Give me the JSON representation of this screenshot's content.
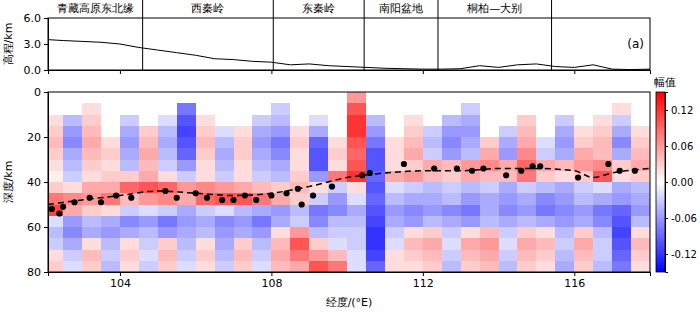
{
  "chart_data": [
    {
      "type": "line",
      "label": "(a)",
      "ylabel": "高程/km",
      "color": "#000000",
      "x": [
        102.1,
        102.5,
        103,
        103.5,
        104,
        104.5,
        105,
        105.5,
        106,
        106.5,
        107,
        107.5,
        108,
        108.5,
        109,
        109.5,
        110,
        110.5,
        111,
        111.5,
        112,
        112.5,
        113,
        113.5,
        114,
        114.5,
        115,
        115.5,
        116,
        116.5,
        117,
        117.5,
        118
      ],
      "values": [
        3.5,
        3.4,
        3.3,
        3.2,
        3.0,
        2.6,
        2.3,
        2.0,
        1.7,
        1.3,
        1.2,
        1.0,
        0.9,
        0.6,
        0.7,
        0.5,
        0.4,
        0.3,
        0.2,
        0.15,
        0.1,
        0.1,
        0.15,
        0.5,
        0.3,
        0.6,
        0.7,
        0.4,
        0.3,
        0.6,
        0.1,
        0.05,
        0.1
      ],
      "xlim": [
        102.1,
        118.0
      ],
      "ylim": [
        0,
        6
      ],
      "xticks": [
        104,
        108,
        112,
        116
      ],
      "yticks": [
        {
          "value": 0,
          "label": "0.0"
        },
        {
          "value": 3,
          "label": "3.0"
        },
        {
          "value": 6,
          "label": "6.0"
        }
      ],
      "tick_labels": "y",
      "regions": [
        {
          "label": "青藏高原东北缘",
          "from": 102.1,
          "to": 104.6
        },
        {
          "label": "西秦岭",
          "from": 104.6,
          "to": 108.05
        },
        {
          "label": "东秦岭",
          "from": 108.05,
          "to": 110.45
        },
        {
          "label": "南阳盆地",
          "from": 110.45,
          "to": 112.4
        },
        {
          "label": "桐柏—大别",
          "from": 112.4,
          "to": 115.4
        }
      ]
    },
    {
      "type": "heatmap",
      "xlabel": "经度/(°E)",
      "ylabel": "深度/km",
      "xlim": [
        102.1,
        118.0
      ],
      "ylim": [
        80,
        0
      ],
      "xticks": [
        104,
        108,
        112,
        116
      ],
      "yticks": [
        0,
        20,
        40,
        60,
        80
      ],
      "color_label": "幅值",
      "color_range": [
        -0.15,
        0.15
      ],
      "color_ticks": [
        0.12,
        0.06,
        {
          "value": 0,
          "label": "0.00"
        },
        -0.06,
        -0.12
      ],
      "x_edges": [
        102,
        102.5,
        103,
        103.5,
        104,
        104.5,
        105,
        105.5,
        106,
        106.5,
        107,
        107.5,
        108,
        108.5,
        109,
        109.5,
        110,
        110.5,
        111,
        111.5,
        112,
        112.5,
        113,
        113.5,
        114,
        114.5,
        115,
        115.5,
        116,
        116.5,
        117,
        117.5,
        118
      ],
      "y_edges": [
        0,
        5,
        10,
        15,
        20,
        25,
        30,
        35,
        40,
        45,
        50,
        55,
        60,
        65,
        70,
        75,
        80
      ],
      "cells": [
        [
          0,
          0,
          0,
          0,
          0,
          0,
          0,
          0,
          0,
          0,
          0,
          0,
          0,
          0,
          0,
          0,
          0.06,
          0,
          0,
          0,
          0,
          0,
          0,
          0,
          0,
          0,
          0,
          0,
          0,
          0,
          0,
          0
        ],
        [
          0,
          0,
          0.02,
          0,
          0,
          0,
          0,
          -0.08,
          0,
          0,
          0,
          0,
          -0.03,
          0,
          0,
          0,
          0.1,
          0,
          0,
          0,
          0,
          0,
          -0.03,
          0,
          0,
          0,
          0,
          0,
          0,
          0,
          0.02,
          0
        ],
        [
          0.02,
          -0.04,
          0.03,
          0,
          -0.03,
          0,
          -0.02,
          -0.1,
          0.02,
          0,
          0,
          -0.03,
          -0.04,
          0,
          -0.02,
          0,
          0.12,
          -0.04,
          0,
          0.02,
          0,
          -0.04,
          -0.05,
          0,
          0,
          0.03,
          0,
          -0.03,
          0,
          0.02,
          -0.03,
          0
        ],
        [
          0.03,
          -0.06,
          0.04,
          0,
          -0.05,
          0.03,
          -0.04,
          -0.11,
          0.03,
          -0.02,
          0.02,
          -0.05,
          -0.06,
          0.02,
          -0.05,
          0,
          0.12,
          -0.06,
          0,
          0.03,
          -0.03,
          -0.06,
          -0.06,
          0,
          -0.03,
          0.04,
          0,
          -0.05,
          0.02,
          0.03,
          -0.05,
          0.02
        ],
        [
          0.04,
          -0.07,
          0.05,
          0.02,
          -0.06,
          0.04,
          -0.05,
          -0.1,
          0.04,
          -0.04,
          0.03,
          -0.06,
          -0.08,
          0.03,
          -0.09,
          0.02,
          0.1,
          -0.08,
          0.02,
          0.04,
          -0.04,
          -0.07,
          -0.05,
          0.03,
          -0.05,
          0.05,
          -0.02,
          -0.06,
          0.03,
          0.04,
          -0.07,
          0.03
        ],
        [
          0.03,
          -0.05,
          0.04,
          0.03,
          -0.05,
          0.05,
          -0.04,
          -0.09,
          0.03,
          -0.05,
          0.03,
          -0.05,
          -0.07,
          0.02,
          -0.1,
          0.03,
          0.09,
          -0.1,
          0.02,
          0.05,
          -0.03,
          -0.06,
          -0.04,
          0.05,
          -0.06,
          0.07,
          -0.03,
          -0.05,
          0.05,
          0.04,
          -0.05,
          0.04
        ],
        [
          0.02,
          -0.04,
          0.03,
          0.02,
          -0.04,
          0.04,
          -0.03,
          -0.06,
          0.02,
          -0.04,
          0.02,
          -0.04,
          -0.05,
          0.02,
          -0.1,
          0.02,
          0.1,
          -0.1,
          0.02,
          0.03,
          0.05,
          0.04,
          0.06,
          0.07,
          0.05,
          0.09,
          0.05,
          0.04,
          0.06,
          0.07,
          0.03,
          0.05
        ],
        [
          0.01,
          -0.03,
          0.02,
          0.03,
          0.03,
          0.05,
          0.02,
          -0.03,
          0.02,
          -0.03,
          0.02,
          -0.03,
          -0.04,
          0.03,
          -0.06,
          0.08,
          0.12,
          -0.09,
          0.05,
          0.06,
          0.04,
          0.03,
          0.05,
          0.04,
          0.04,
          0.08,
          0.03,
          0.02,
          0.03,
          0.1,
          0.02,
          0.03
        ],
        [
          0.03,
          0.02,
          0.05,
          0.05,
          0.09,
          0.1,
          0.09,
          0.06,
          0.07,
          0.06,
          0.05,
          0.04,
          0.03,
          0.04,
          0.02,
          -0.03,
          0.02,
          -0.1,
          -0.02,
          -0.03,
          -0.04,
          -0.03,
          -0.04,
          -0.03,
          -0.05,
          -0.03,
          -0.04,
          -0.05,
          -0.03,
          -0.02,
          -0.05,
          -0.04
        ],
        [
          0.08,
          0.07,
          0.06,
          0.08,
          0.04,
          0.06,
          0.07,
          0.05,
          0.09,
          0.1,
          0.1,
          0.08,
          0.05,
          0.03,
          -0.03,
          -0.06,
          -0.02,
          -0.09,
          -0.04,
          -0.05,
          -0.05,
          -0.04,
          -0.06,
          -0.05,
          -0.06,
          -0.05,
          -0.07,
          -0.06,
          -0.04,
          -0.05,
          -0.06,
          -0.05
        ],
        [
          0.11,
          0.05,
          0.03,
          0.02,
          -0.03,
          -0.02,
          -0.03,
          -0.05,
          -0.03,
          -0.02,
          -0.04,
          -0.05,
          -0.06,
          -0.04,
          -0.08,
          -0.07,
          -0.05,
          -0.1,
          -0.06,
          -0.07,
          -0.06,
          -0.07,
          -0.08,
          -0.05,
          -0.07,
          -0.06,
          -0.08,
          -0.07,
          -0.06,
          -0.08,
          -0.09,
          -0.06
        ],
        [
          -0.02,
          -0.06,
          -0.04,
          -0.05,
          -0.07,
          -0.06,
          -0.08,
          -0.06,
          -0.05,
          -0.07,
          -0.06,
          -0.08,
          -0.05,
          -0.03,
          -0.07,
          -0.04,
          -0.04,
          -0.11,
          -0.05,
          -0.06,
          -0.04,
          -0.05,
          -0.06,
          -0.04,
          -0.05,
          -0.04,
          -0.05,
          -0.06,
          -0.05,
          -0.07,
          -0.1,
          -0.04
        ],
        [
          -0.04,
          -0.07,
          -0.05,
          -0.06,
          -0.05,
          -0.04,
          -0.06,
          -0.05,
          -0.04,
          -0.06,
          -0.05,
          -0.06,
          0.02,
          0.06,
          -0.04,
          -0.03,
          -0.03,
          -0.12,
          -0.03,
          0.02,
          0.03,
          -0.03,
          0.02,
          0.04,
          -0.03,
          0.03,
          0.02,
          -0.04,
          0.03,
          -0.04,
          -0.11,
          0.02
        ],
        [
          -0.03,
          -0.05,
          0.02,
          -0.04,
          0.02,
          -0.03,
          0.03,
          -0.04,
          0.02,
          -0.05,
          0.03,
          -0.04,
          0.04,
          0.1,
          0.03,
          -0.02,
          -0.03,
          -0.12,
          -0.02,
          0.04,
          0.05,
          -0.02,
          0.05,
          0.06,
          -0.02,
          0.05,
          0.04,
          -0.03,
          0.05,
          -0.03,
          -0.1,
          0.04
        ],
        [
          0.02,
          -0.03,
          0.04,
          -0.03,
          0.03,
          -0.02,
          0.04,
          -0.03,
          0.03,
          -0.04,
          0.04,
          -0.03,
          0.05,
          0.08,
          0.06,
          0.04,
          -0.02,
          -0.11,
          0.02,
          0.03,
          0.04,
          -0.03,
          0.04,
          0.05,
          -0.03,
          0.04,
          0.03,
          -0.04,
          0.04,
          -0.03,
          -0.09,
          0.03
        ],
        [
          0.03,
          -0.02,
          0.03,
          -0.04,
          0.02,
          -0.03,
          0.03,
          -0.02,
          0.02,
          -0.03,
          0.03,
          -0.02,
          0.04,
          0.05,
          0.1,
          0.08,
          -0.02,
          -0.09,
          0.02,
          0.02,
          0.03,
          -0.04,
          0.03,
          0.04,
          -0.04,
          0.03,
          0.02,
          -0.05,
          0.03,
          -0.04,
          -0.08,
          0.02
        ]
      ],
      "series": [
        {
          "type": "line",
          "line_style": "dashed",
          "color": "#000000",
          "x": [
            102.1,
            103,
            104,
            105,
            106,
            107,
            108,
            109,
            110,
            111,
            112,
            113,
            114,
            115,
            116,
            116.5,
            117,
            118
          ],
          "values": [
            50,
            48,
            46,
            44,
            45,
            46,
            45,
            42,
            38,
            36,
            35,
            35,
            34,
            34,
            35,
            38,
            36,
            34
          ]
        },
        {
          "type": "scatter",
          "marker": "circle",
          "color": "#000000",
          "x": [
            102.2,
            102.4,
            102.5,
            102.8,
            103.2,
            103.5,
            103.9,
            104.3,
            105.2,
            105.5,
            106.0,
            106.3,
            106.7,
            107.0,
            107.3,
            107.6,
            108.0,
            108.4,
            108.7,
            108.8,
            109.1,
            109.6,
            110.4,
            110.6,
            111.5,
            112.3,
            112.9,
            113.3,
            113.6,
            114.2,
            114.6,
            114.9,
            115.1,
            116.1,
            116.9,
            117.2,
            117.6
          ],
          "values": [
            52,
            54,
            51,
            49,
            47,
            49,
            46,
            47,
            44,
            47,
            45,
            47,
            48,
            48,
            46,
            48,
            46,
            45,
            43,
            50,
            46,
            42,
            37,
            36,
            32,
            34,
            34,
            35,
            34,
            37,
            35,
            33,
            33,
            38,
            32,
            35,
            35
          ]
        }
      ]
    }
  ]
}
